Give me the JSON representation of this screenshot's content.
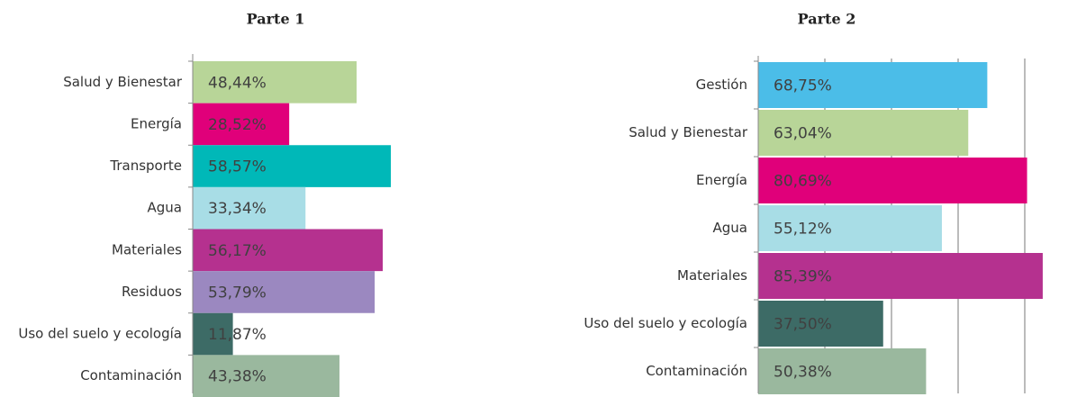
{
  "chart_data": [
    {
      "type": "bar",
      "orientation": "horizontal",
      "title": "Parte 1",
      "categories": [
        "Salud y Bienestar",
        "Energía",
        "Transporte",
        "Agua",
        "Materiales",
        "Residuos",
        "Uso del suelo y ecología",
        "Contaminación"
      ],
      "values": [
        48.44,
        28.52,
        58.57,
        33.34,
        56.17,
        53.79,
        11.87,
        43.38
      ],
      "value_labels": [
        "48,44%",
        "28,52%",
        "58,57%",
        "33,34%",
        "56,17%",
        "53,79%",
        "11,87%",
        "43,38%"
      ],
      "colors": [
        "#b8d598",
        "#e0007a",
        "#00b8b8",
        "#a8dde6",
        "#b5318f",
        "#9b88c0",
        "#3d6b66",
        "#9ab89e"
      ],
      "xlim": [
        0,
        100
      ],
      "xticks": [
        0,
        20,
        40,
        60,
        80,
        100
      ],
      "grid": false
    },
    {
      "type": "bar",
      "orientation": "horizontal",
      "title": "Parte 2",
      "categories": [
        "Gestión",
        "Salud y Bienestar",
        "Energía",
        "Agua",
        "Materiales",
        "Uso del suelo y ecología",
        "Contaminación"
      ],
      "values": [
        68.75,
        63.04,
        80.69,
        55.12,
        85.39,
        37.5,
        50.38
      ],
      "value_labels": [
        "68,75%",
        "63,04%",
        "80,69%",
        "55,12%",
        "85,39%",
        "37,50%",
        "50,38%"
      ],
      "colors": [
        "#4bbde8",
        "#b8d598",
        "#e0007a",
        "#a8dde6",
        "#b5318f",
        "#3d6b66",
        "#9ab89e"
      ],
      "xlim": [
        0,
        95
      ],
      "xticks": [
        0,
        20,
        40,
        60,
        80
      ],
      "grid": true
    }
  ]
}
